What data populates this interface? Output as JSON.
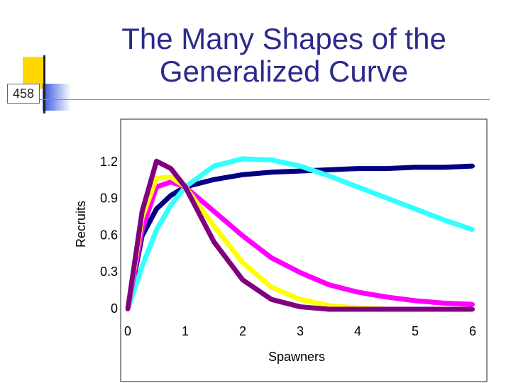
{
  "slide_number": "458",
  "title": "The Many Shapes of the Generalized Curve",
  "chart_data": {
    "type": "line",
    "xlabel": "Spawners",
    "ylabel": "Recruits",
    "x": [
      0,
      0.25,
      0.5,
      0.75,
      1,
      1.5,
      2,
      2.5,
      3,
      3.5,
      4,
      4.5,
      5,
      5.5,
      6
    ],
    "xlim": [
      0,
      6
    ],
    "xticks": [
      0,
      1,
      2,
      3,
      4,
      5,
      6
    ],
    "ylim": [
      0,
      1.2
    ],
    "yticks": [
      0,
      0.3,
      0.6,
      0.9,
      1.2
    ],
    "series": [
      {
        "color": "#000080",
        "values": [
          0,
          0.6,
          0.82,
          0.93,
          1.0,
          1.06,
          1.1,
          1.12,
          1.13,
          1.14,
          1.15,
          1.15,
          1.16,
          1.16,
          1.17
        ]
      },
      {
        "color": "#33ffff",
        "values": [
          0,
          0.35,
          0.65,
          0.85,
          1.0,
          1.17,
          1.23,
          1.22,
          1.17,
          1.09,
          1.0,
          0.91,
          0.82,
          0.73,
          0.65
        ]
      },
      {
        "color": "#ff00ff",
        "values": [
          0,
          0.65,
          1.0,
          1.04,
          1.0,
          0.8,
          0.6,
          0.42,
          0.3,
          0.2,
          0.14,
          0.1,
          0.07,
          0.05,
          0.04
        ]
      },
      {
        "color": "#ffff00",
        "values": [
          0,
          0.75,
          1.07,
          1.08,
          1.0,
          0.68,
          0.38,
          0.18,
          0.08,
          0.03,
          0.01,
          0,
          0,
          0,
          0
        ]
      },
      {
        "color": "#800080",
        "values": [
          0,
          0.8,
          1.21,
          1.15,
          1.0,
          0.55,
          0.24,
          0.08,
          0.02,
          0,
          0,
          0,
          0,
          0,
          0
        ]
      }
    ]
  }
}
